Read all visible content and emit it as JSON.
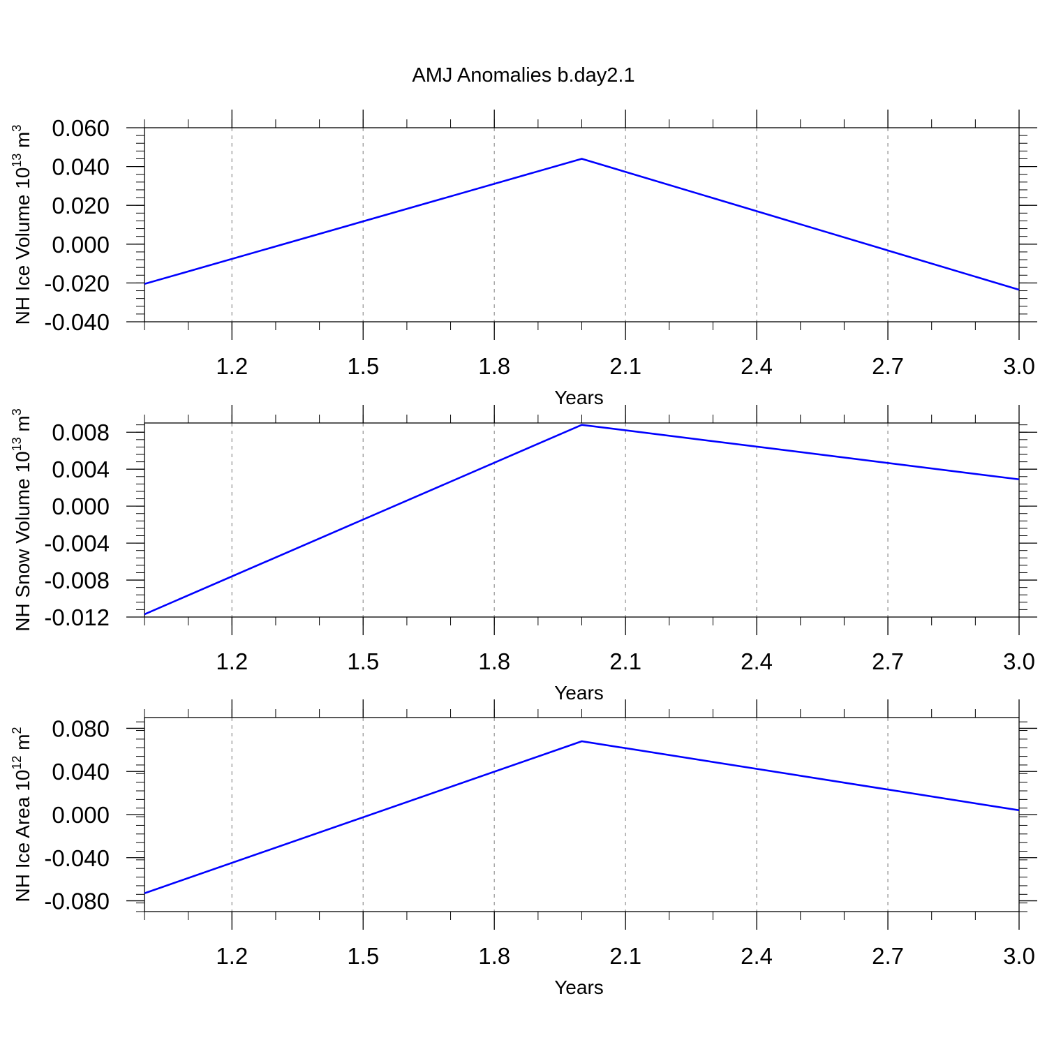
{
  "figure": {
    "title": "AMJ Anomalies b.day2.1",
    "line_color": "#0000ff",
    "axis_color": "#000000",
    "grid_color": "#999999"
  },
  "chart_data": [
    {
      "type": "line",
      "title": "",
      "xlabel": "Years",
      "ylabel": {
        "text": "NH Ice Volume 10",
        "sup": "13",
        "unit": " m",
        "unit_sup": "3"
      },
      "x": [
        1,
        2,
        3
      ],
      "series": [
        {
          "values": [
            -0.0205,
            0.044,
            -0.0235
          ]
        }
      ],
      "xlim": [
        1,
        3
      ],
      "ylim": [
        -0.04,
        0.06
      ],
      "xticks": [
        1.2,
        1.5,
        1.8,
        2.1,
        2.4,
        2.7,
        3.0
      ],
      "xtick_labels": [
        "1.2",
        "1.5",
        "1.8",
        "2.1",
        "2.4",
        "2.7",
        "3.0"
      ],
      "yticks": [
        0.06,
        0.04,
        0.02,
        0.0,
        -0.02,
        -0.04
      ],
      "ytick_labels": [
        "0.060",
        "0.040",
        "0.020",
        "0.000",
        "-0.020",
        "-0.040"
      ],
      "grid": "vertical dashed"
    },
    {
      "type": "line",
      "title": "",
      "xlabel": "Years",
      "ylabel": {
        "text": "NH Snow Volume 10",
        "sup": "13",
        "unit": " m",
        "unit_sup": "3"
      },
      "x": [
        1,
        2,
        3
      ],
      "series": [
        {
          "values": [
            -0.0117,
            0.0088,
            0.0029
          ]
        }
      ],
      "xlim": [
        1,
        3
      ],
      "ylim": [
        -0.012,
        0.009
      ],
      "xticks": [
        1.2,
        1.5,
        1.8,
        2.1,
        2.4,
        2.7,
        3.0
      ],
      "xtick_labels": [
        "1.2",
        "1.5",
        "1.8",
        "2.1",
        "2.4",
        "2.7",
        "3.0"
      ],
      "yticks": [
        0.008,
        0.004,
        0.0,
        -0.004,
        -0.008,
        -0.012
      ],
      "ytick_labels": [
        "0.008",
        "0.004",
        "0.000",
        "-0.004",
        "-0.008",
        "-0.012"
      ],
      "grid": "vertical dashed"
    },
    {
      "type": "line",
      "title": "",
      "xlabel": "Years",
      "ylabel": {
        "text": "NH Ice Area 10",
        "sup": "12",
        "unit": " m",
        "unit_sup": "2"
      },
      "x": [
        1,
        2,
        3
      ],
      "series": [
        {
          "values": [
            -0.073,
            0.068,
            0.004
          ]
        }
      ],
      "xlim": [
        1,
        3
      ],
      "ylim": [
        -0.09,
        0.09
      ],
      "xticks": [
        1.2,
        1.5,
        1.8,
        2.1,
        2.4,
        2.7,
        3.0
      ],
      "xtick_labels": [
        "1.2",
        "1.5",
        "1.8",
        "2.1",
        "2.4",
        "2.7",
        "3.0"
      ],
      "yticks": [
        0.08,
        0.04,
        0.0,
        -0.04,
        -0.08
      ],
      "ytick_labels": [
        "0.080",
        "0.040",
        "0.000",
        "-0.040",
        "-0.080"
      ],
      "grid": "vertical dashed"
    }
  ]
}
